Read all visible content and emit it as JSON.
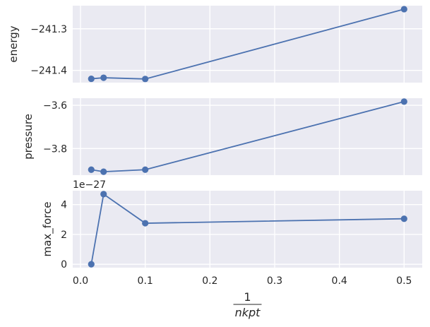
{
  "chart_data": {
    "type": "line",
    "x": [
      0.01667,
      0.03571,
      0.1,
      0.5
    ],
    "xlim": [
      -0.012,
      0.528
    ],
    "x_ticks": [
      0.0,
      0.1,
      0.2,
      0.3,
      0.4,
      0.5
    ],
    "x_tick_labels": [
      "0.0",
      "0.1",
      "0.2",
      "0.3",
      "0.4",
      "0.5"
    ],
    "xlabel": {
      "numerator": "1",
      "denominator": "nkpt"
    },
    "grid": true,
    "colors": {
      "background": "#eaeaf2",
      "grid": "#ffffff",
      "line": "#4c72b0",
      "text": "#262626"
    },
    "panels": [
      {
        "name": "energy",
        "ylabel": "energy",
        "values": [
          -241.4202,
          -241.4176,
          -241.4206,
          -241.2528
        ],
        "ylim": [
          -241.4294,
          -241.2444
        ],
        "y_ticks": [
          -241.3,
          -241.4
        ],
        "y_tick_labels": [
          "−241.3",
          "−241.4"
        ],
        "offset_text": ""
      },
      {
        "name": "pressure",
        "ylabel": "pressure",
        "values": [
          -3.8981,
          -3.9074,
          -3.8981,
          -3.5831
        ],
        "ylim": [
          -3.9233,
          -3.5672
        ],
        "y_ticks": [
          -3.6,
          -3.8
        ],
        "y_tick_labels": [
          "−3.6",
          "−3.8"
        ],
        "offset_text": ""
      },
      {
        "name": "max_force",
        "ylabel": "max_force",
        "values": [
          0.0,
          4.7,
          2.75,
          3.05
        ],
        "ylim": [
          -0.23,
          4.93
        ],
        "y_ticks": [
          0,
          2,
          4
        ],
        "y_tick_labels": [
          "0",
          "2",
          "4"
        ],
        "offset_text": "1e−27"
      }
    ]
  }
}
